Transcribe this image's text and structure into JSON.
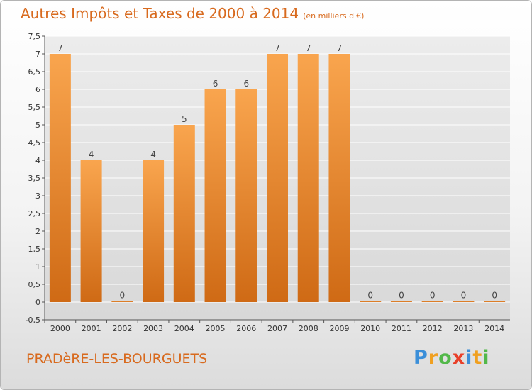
{
  "header": {
    "title": "Autres Impôts et Taxes de 2000 à 2014",
    "subtitle": "(en milliers d'€)"
  },
  "footer": {
    "commune": "PRADèRE-LES-BOURGUETS",
    "brand": [
      "P",
      "r",
      "o",
      "x",
      "i",
      "t",
      "i"
    ]
  },
  "colors": {
    "title": "#d86a1e",
    "bar_light": "#f9a54e",
    "bar_dark": "#cf6a15",
    "brand": [
      "#3b8fd9",
      "#f0a020",
      "#52b849",
      "#e8402a",
      "#3b8fd9",
      "#f0a020",
      "#52b849"
    ]
  },
  "chart_data": {
    "type": "bar",
    "title": "Autres Impôts et Taxes de 2000 à 2014",
    "subtitle": "(en milliers d'€)",
    "categories": [
      "2000",
      "2001",
      "2002",
      "2003",
      "2004",
      "2005",
      "2006",
      "2007",
      "2008",
      "2009",
      "2010",
      "2011",
      "2012",
      "2013",
      "2014"
    ],
    "values": [
      7,
      4,
      0,
      4,
      5,
      6,
      6,
      7,
      7,
      7,
      0,
      0,
      0,
      0,
      0
    ],
    "ylim": [
      -0.5,
      7.5
    ],
    "yticks": [
      -0.5,
      0,
      0.5,
      1,
      1.5,
      2,
      2.5,
      3,
      3.5,
      4,
      4.5,
      5,
      5.5,
      6,
      6.5,
      7,
      7.5
    ],
    "ytick_labels": [
      "-0,5",
      "0",
      "0,5",
      "1",
      "1,5",
      "2",
      "2,5",
      "3",
      "3,5",
      "4",
      "4,5",
      "5",
      "5,5",
      "6",
      "6,5",
      "7",
      "7,5"
    ],
    "grid": true,
    "legend": "none"
  }
}
